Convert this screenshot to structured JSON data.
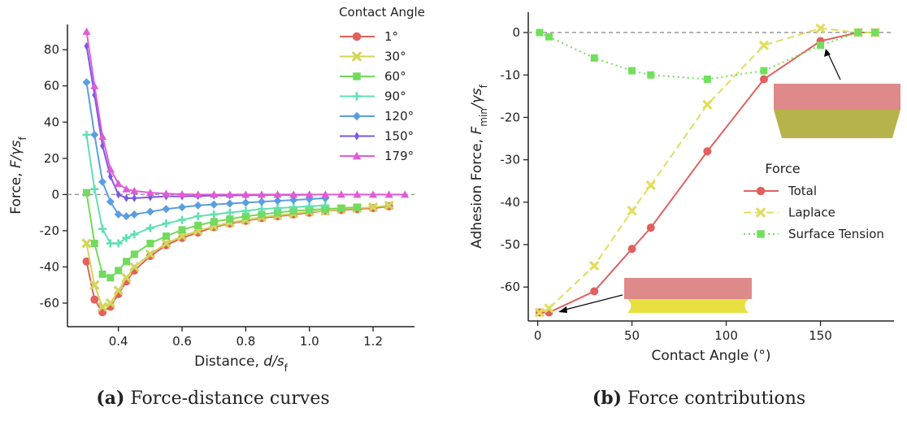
{
  "chart_data": [
    {
      "type": "line",
      "xlabel": [
        {
          "text": "Distance, "
        },
        {
          "text": "d",
          "style": "italic"
        },
        {
          "text": "/",
          "style": "italic"
        },
        {
          "text": "s",
          "style": "italic"
        },
        {
          "text": "f",
          "style": "sub"
        }
      ],
      "ylabel": [
        {
          "text": "Force, "
        },
        {
          "text": "F",
          "style": "italic"
        },
        {
          "text": "/γs",
          "style": "italic"
        },
        {
          "text": "f",
          "style": "sub"
        }
      ],
      "xlim": [
        0.24,
        1.33
      ],
      "xticks": [
        0.4,
        0.6,
        0.8,
        1.0,
        1.2
      ],
      "ylim": [
        -73,
        94
      ],
      "yticks": [
        80,
        60,
        40,
        20,
        0,
        -20,
        -40,
        -60
      ],
      "hline": 0,
      "legend": "upper right",
      "legend_title": "Contact Angle",
      "series": [
        {
          "name": "1°",
          "color": "#e3605c",
          "marker": "circle",
          "x": [
            0.3,
            0.325,
            0.35,
            0.375,
            0.4,
            0.425,
            0.45,
            0.5,
            0.55,
            0.6,
            0.65,
            0.7,
            0.75,
            0.8,
            0.85,
            0.9,
            0.95,
            1.0,
            1.05,
            1.1,
            1.15,
            1.2,
            1.25
          ],
          "values": [
            -37,
            -58,
            -65,
            -62,
            -55,
            -48,
            -42,
            -34,
            -28,
            -24,
            -21,
            -18,
            -16,
            -14.5,
            -13,
            -12,
            -11,
            -10,
            -9,
            -8.5,
            -8,
            -7.5,
            -6.5
          ]
        },
        {
          "name": "30°",
          "color": "#d2d65a",
          "marker": "x",
          "x": [
            0.3,
            0.325,
            0.35,
            0.375,
            0.4,
            0.425,
            0.45,
            0.5,
            0.55,
            0.6,
            0.65,
            0.7,
            0.75,
            0.8,
            0.85,
            0.9,
            0.95,
            1.0,
            1.05,
            1.1,
            1.15,
            1.2,
            1.25
          ],
          "values": [
            -27,
            -50,
            -62,
            -60,
            -53,
            -46,
            -40,
            -33,
            -27,
            -23,
            -20,
            -17.5,
            -15.5,
            -14,
            -12.5,
            -11.5,
            -10.5,
            -9.5,
            -9,
            -8,
            -7.5,
            -7,
            -6
          ]
        },
        {
          "name": "60°",
          "color": "#72da5c",
          "marker": "square",
          "x": [
            0.3,
            0.325,
            0.35,
            0.375,
            0.4,
            0.425,
            0.45,
            0.5,
            0.55,
            0.6,
            0.65,
            0.7,
            0.75,
            0.8,
            0.85,
            0.9,
            0.95,
            1.0,
            1.05,
            1.1,
            1.15
          ],
          "values": [
            1,
            -27,
            -44,
            -46,
            -42,
            -37,
            -33,
            -27,
            -23,
            -19.5,
            -17,
            -15,
            -13.5,
            -12,
            -11,
            -10,
            -9,
            -8.5,
            -8,
            -7.5,
            -7
          ]
        },
        {
          "name": "90°",
          "color": "#5fe0b2",
          "marker": "plus",
          "x": [
            0.3,
            0.325,
            0.35,
            0.375,
            0.4,
            0.425,
            0.45,
            0.5,
            0.55,
            0.6,
            0.65,
            0.7,
            0.75,
            0.8,
            0.85,
            0.9,
            0.95,
            1.0,
            1.05
          ],
          "values": [
            33,
            3,
            -19,
            -27,
            -27,
            -24,
            -22,
            -18.5,
            -16,
            -14,
            -12,
            -11,
            -10,
            -9,
            -8,
            -7.5,
            -7,
            -6.5,
            -6
          ]
        },
        {
          "name": "120°",
          "color": "#5a9edf",
          "marker": "diamond",
          "x": [
            0.3,
            0.325,
            0.35,
            0.375,
            0.4,
            0.425,
            0.45,
            0.5,
            0.55,
            0.6,
            0.65,
            0.7,
            0.75,
            0.8,
            0.85,
            0.9,
            0.95,
            1.0,
            1.05
          ],
          "values": [
            62,
            33,
            7,
            -4,
            -11,
            -12,
            -11,
            -9.5,
            -8,
            -7,
            -6,
            -5.5,
            -5,
            -4.5,
            -4,
            -3.5,
            -3,
            -2.5,
            -2
          ]
        },
        {
          "name": "150°",
          "color": "#7b5ae0",
          "marker": "thin_diamond",
          "x": [
            0.3,
            0.325,
            0.35,
            0.375,
            0.4,
            0.425,
            0.45,
            0.5,
            0.55,
            0.6,
            0.65,
            0.7,
            0.75,
            0.8,
            0.85,
            0.9,
            0.95,
            1.0
          ],
          "values": [
            82,
            55,
            27,
            10,
            0,
            -2,
            -2,
            -1.5,
            -1,
            -1,
            -0.8,
            -0.6,
            -0.5,
            -0.4,
            -0.3,
            -0.2,
            -0.2,
            -0.1
          ]
        },
        {
          "name": "179°",
          "color": "#e05bd6",
          "marker": "triangle",
          "x": [
            0.3,
            0.325,
            0.35,
            0.375,
            0.4,
            0.425,
            0.45,
            0.5,
            0.55,
            0.6,
            0.65,
            0.7,
            0.75,
            0.8,
            0.85,
            0.9,
            0.95,
            1.0,
            1.05,
            1.1,
            1.15,
            1.2,
            1.25,
            1.3
          ],
          "values": [
            90,
            60,
            32,
            14,
            6,
            3,
            2,
            1,
            0.5,
            0.2,
            0,
            0,
            0,
            0,
            0,
            0,
            0,
            0,
            0,
            0,
            0,
            0,
            0,
            0
          ]
        }
      ]
    },
    {
      "type": "line",
      "xlabel": [
        {
          "text": "Contact Angle (°)"
        }
      ],
      "ylabel": [
        {
          "text": "Adhesion Force, "
        },
        {
          "text": "F",
          "style": "italic"
        },
        {
          "text": "min",
          "style": "sub"
        },
        {
          "text": "/γs",
          "style": "italic"
        },
        {
          "text": "f",
          "style": "sub"
        }
      ],
      "xlim": [
        -5,
        189
      ],
      "xticks": [
        0,
        50,
        100,
        150
      ],
      "ylim": [
        -68,
        4.8
      ],
      "yticks": [
        0,
        -10,
        -20,
        -30,
        -40,
        -50,
        -60
      ],
      "hline": 0,
      "legend": "center right",
      "legend_title": "Force",
      "x": [
        1,
        6,
        30,
        50,
        60,
        90,
        120,
        150,
        170,
        179
      ],
      "series": [
        {
          "name": "Total",
          "color": "#e06060",
          "marker": "circle",
          "dash": "solid",
          "values": [
            -66,
            -66,
            -61,
            -51,
            -46,
            -28,
            -11,
            -2,
            0,
            0
          ]
        },
        {
          "name": "Laplace",
          "color": "#e2dc5e",
          "marker": "x",
          "dash": "dashed",
          "values": [
            -66,
            -65,
            -55,
            -42,
            -36,
            -17,
            -3,
            1,
            0,
            0
          ]
        },
        {
          "name": "Surface Tension",
          "color": "#70e05c",
          "marker": "square",
          "dash": "dotted",
          "values": [
            0,
            -1,
            -6,
            -9,
            -10,
            -11,
            -9,
            -3,
            0,
            0
          ]
        }
      ]
    }
  ],
  "captions": [
    {
      "label": "(a)",
      "text": "Force-distance curves"
    },
    {
      "label": "(b)",
      "text": "Force contributions"
    }
  ]
}
